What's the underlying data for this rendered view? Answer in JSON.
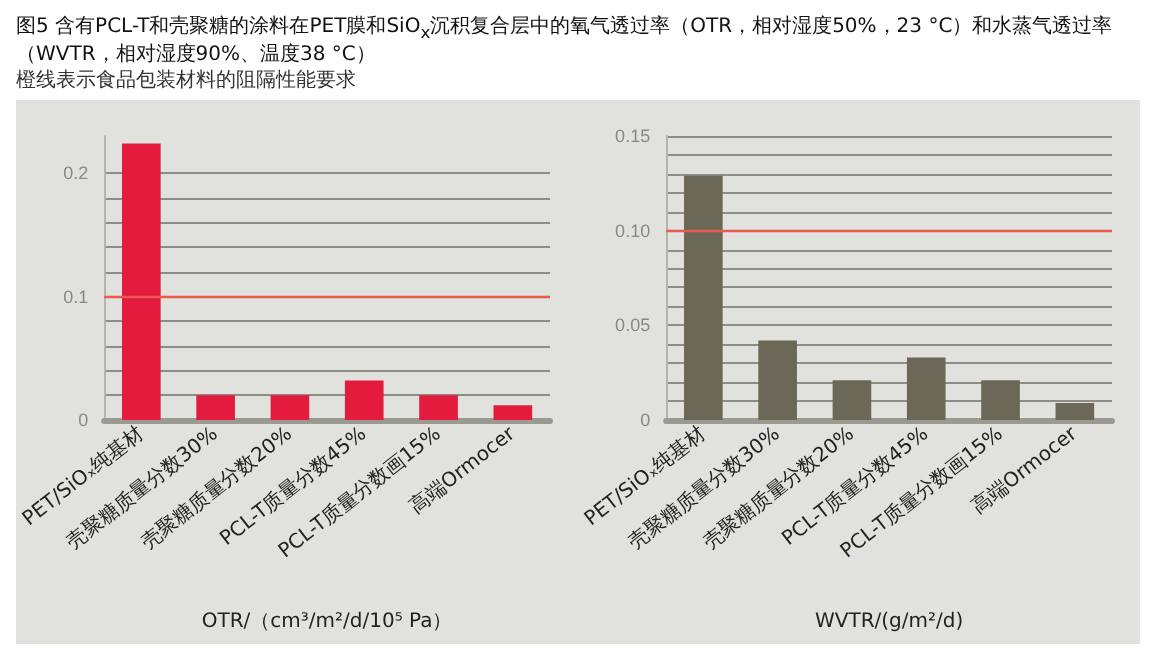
{
  "chart_data": [
    {
      "type": "bar",
      "title": "图5  含有PCL-T和壳聚糖的涂料在PET膜和SiO$_{x}$沉积复合层中的氧气透过率（OTR，相对湿度50%，23 °C）和水蒸气透过率（WVTR，相对湿度90%、温度38 °C）",
      "subtitle": "橙线表示食品包装材料的阻隔性能要求",
      "xlabel": "OTR/（cm³/m²/d/10⁵ Pa）",
      "categories": [
        "PET/SiOₓ纯基材",
        "壳聚糖质量分数30%",
        "壳聚糖质量分数20%",
        "PCL-T质量分数45%",
        "PCL-T质量分数画15%",
        "高端Ormocer"
      ],
      "values": [
        0.224,
        0.02,
        0.02,
        0.032,
        0.02,
        0.012
      ],
      "color": "#e31b3c",
      "ylim": [
        0,
        0.23
      ],
      "yticks": [
        0,
        {
          "value": 0.02,
          "label": null
        },
        {
          "value": 0.04,
          "label": null
        },
        {
          "value": 0.06,
          "label": null
        },
        {
          "value": 0.08,
          "label": null
        },
        0.1,
        {
          "value": 0.12,
          "label": null
        },
        {
          "value": 0.14,
          "label": null
        },
        {
          "value": 0.16,
          "label": null
        },
        {
          "value": 0.18,
          "label": null
        },
        0.2
      ],
      "ref_lines": [
        {
          "axis": "y",
          "value": 0.1,
          "label": null,
          "color": "#ea5a4c"
        }
      ],
      "grid": "y"
    },
    {
      "type": "bar",
      "xlabel": "WVTR/(g/m²/d)",
      "categories": [
        "PET/SiOₓ纯基材",
        "壳聚糖质量分数30%",
        "壳聚糖质量分数20%",
        "PCL-T质量分数45%",
        "PCL-T质量分数画15%",
        "高端Ormocer"
      ],
      "values": [
        0.129,
        0.042,
        0.021,
        0.033,
        0.021,
        0.009
      ],
      "color": "#6b6857",
      "ylim": [
        0,
        0.15
      ],
      "yticks": [
        0,
        {
          "value": 0.01,
          "label": null
        },
        {
          "value": 0.02,
          "label": null
        },
        {
          "value": 0.03,
          "label": null
        },
        {
          "value": 0.04,
          "label": null
        },
        0.05,
        {
          "value": 0.06,
          "label": null
        },
        {
          "value": 0.07,
          "label": null
        },
        {
          "value": 0.08,
          "label": null
        },
        {
          "value": 0.09,
          "label": null
        },
        {
          "value": 0.1,
          "label": "0.10"
        },
        {
          "value": 0.11,
          "label": null
        },
        {
          "value": 0.12,
          "label": null
        },
        {
          "value": 0.13,
          "label": null
        },
        {
          "value": 0.14,
          "label": null
        },
        0.15
      ],
      "ref_lines": [
        {
          "axis": "y",
          "value": 0.1,
          "label": null,
          "color": "#ea5a4c"
        }
      ],
      "grid": "y"
    }
  ]
}
